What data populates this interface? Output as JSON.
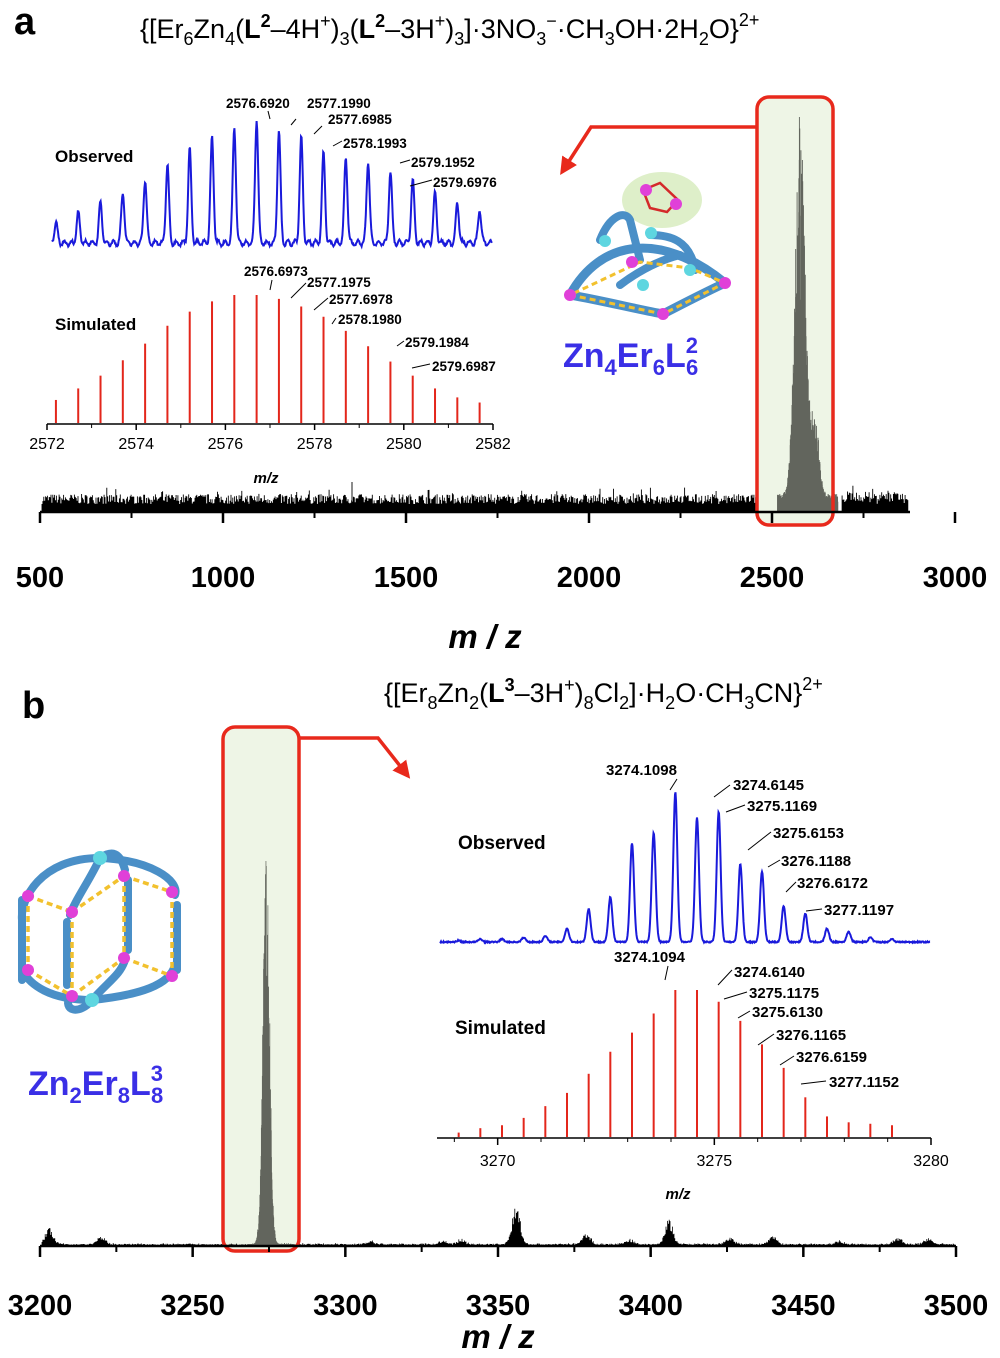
{
  "chart_data": [
    {
      "panel": "a",
      "type": "line",
      "title": "{[Er6Zn4(L2–4H+)3(L2–3H+)3]·3NO3−·CH3OH·2H2O}2+",
      "xlabel": "m / z",
      "xlim": [
        500,
        3000
      ],
      "xticks": [
        500,
        1000,
        1500,
        2000,
        2500,
        3000
      ],
      "highlight_range": [
        2510,
        2690
      ],
      "main_peak_envelope": {
        "center": 2577,
        "start": 2515,
        "end": 2680
      },
      "cluster_label": "Zn4Er6L26",
      "inset": {
        "xlabel": "m/z",
        "xlim": [
          2572,
          2582
        ],
        "xticks": [
          2572,
          2574,
          2576,
          2578,
          2580,
          2582
        ],
        "series": [
          {
            "name": "Observed",
            "color": "#1a1adb",
            "x": [
              2572.2,
              2572.7,
              2573.2,
              2573.7,
              2574.2,
              2574.7,
              2575.2,
              2575.7,
              2576.2,
              2576.7,
              2577.2,
              2577.7,
              2578.2,
              2578.7,
              2579.2,
              2579.7,
              2580.2,
              2580.7,
              2581.2,
              2581.7
            ],
            "values": [
              12,
              18,
              24,
              30,
              38,
              47,
              56,
              63,
              69,
              74,
              68,
              63,
              54,
              51,
              49,
              43,
              38,
              30,
              24,
              20
            ],
            "peak_labels": [
              "2576.6920",
              "2577.1990",
              "2577.6985",
              "2578.1993",
              "2579.1952",
              "2579.6976"
            ]
          },
          {
            "name": "Simulated",
            "color": "#e3261b",
            "x": [
              2572.2,
              2572.7,
              2573.2,
              2573.7,
              2574.2,
              2574.7,
              2575.2,
              2575.7,
              2576.2,
              2576.7,
              2577.2,
              2577.7,
              2578.2,
              2578.7,
              2579.2,
              2579.7,
              2580.2,
              2580.7,
              2581.2,
              2581.7
            ],
            "values": [
              18,
              27,
              37,
              49,
              62,
              76,
              87,
              95,
              100,
              100,
              97,
              91,
              83,
              72,
              60,
              48,
              37,
              27,
              20,
              16
            ],
            "peak_labels": [
              "2576.6973",
              "2577.1975",
              "2577.6978",
              "2578.1980",
              "2579.1984",
              "2579.6987"
            ]
          }
        ]
      }
    },
    {
      "panel": "b",
      "type": "line",
      "title": "{[Er8Zn2(L3–3H+)8Cl2]·H2O·CH3CN}2+",
      "xlabel": "m / z",
      "xlim": [
        3200,
        3500
      ],
      "xticks": [
        3200,
        3250,
        3300,
        3350,
        3400,
        3450,
        3500
      ],
      "highlight_range": [
        3260,
        3283
      ],
      "main_peak_envelope": {
        "center": 3274.1,
        "start": 3268,
        "end": 3282
      },
      "minor_peaks": [
        {
          "x": 3203,
          "value": 10
        },
        {
          "x": 3220,
          "value": 5
        },
        {
          "x": 3308,
          "value": 2
        },
        {
          "x": 3332,
          "value": 2
        },
        {
          "x": 3338,
          "value": 3
        },
        {
          "x": 3356,
          "value": 25
        },
        {
          "x": 3379,
          "value": 7
        },
        {
          "x": 3393,
          "value": 3
        },
        {
          "x": 3406,
          "value": 15
        },
        {
          "x": 3426,
          "value": 4
        },
        {
          "x": 3440,
          "value": 5
        },
        {
          "x": 3462,
          "value": 2
        },
        {
          "x": 3481,
          "value": 4
        },
        {
          "x": 3491,
          "value": 4
        }
      ],
      "cluster_label": "Zn2Er8L38",
      "inset": {
        "xlabel": "m/z",
        "xlim": [
          3268.6,
          3280
        ],
        "xticks": [
          3270,
          3275,
          3280
        ],
        "series": [
          {
            "name": "Observed",
            "color": "#1a1adb",
            "x": [
              3269.1,
              3269.6,
              3270.1,
              3270.6,
              3271.1,
              3271.6,
              3272.1,
              3272.6,
              3273.1,
              3273.6,
              3274.1,
              3274.6,
              3275.1,
              3275.6,
              3276.1,
              3276.6,
              3277.1,
              3277.6,
              3278.1,
              3278.6,
              3279.1
            ],
            "values": [
              1,
              2,
              2,
              3,
              4,
              9,
              22,
              30,
              66,
              73,
              100,
              83,
              87,
              52,
              47,
              24,
              19,
              9,
              7,
              3,
              2
            ],
            "peak_labels": [
              "3274.1098",
              "3274.6145",
              "3275.1169",
              "3275.6153",
              "3276.1188",
              "3276.6172",
              "3277.1197"
            ]
          },
          {
            "name": "Simulated",
            "color": "#e3261b",
            "x": [
              3269.1,
              3269.6,
              3270.1,
              3270.6,
              3271.1,
              3271.6,
              3272.1,
              3272.6,
              3273.1,
              3273.6,
              3274.1,
              3274.6,
              3275.1,
              3275.6,
              3276.1,
              3276.6,
              3277.1,
              3277.6,
              3278.1,
              3278.6,
              3279.1
            ],
            "values": [
              3,
              6,
              8,
              13,
              21,
              30,
              43,
              58,
              71,
              84,
              100,
              100,
              92,
              79,
              63,
              47,
              27,
              14,
              10,
              9,
              8
            ],
            "peak_labels": [
              "3274.1094",
              "3274.6140",
              "3275.1175",
              "3275.6130",
              "3276.1165",
              "3276.6159",
              "3277.1152"
            ]
          }
        ]
      }
    }
  ],
  "labels": {
    "a": {
      "letter": "a",
      "title": {
        "t1": "{[Er",
        "s1": "6",
        "t2": "Zn",
        "s2": "4",
        "t3": "(",
        "b1": "L",
        "p1": "2",
        "t4": "–4H",
        "p2": "+",
        "t5": ")",
        "s3": "3",
        "t6": "(",
        "b2": "L",
        "p3": "2",
        "t7": "–3H",
        "p4": "+",
        "t8": ")",
        "s4": "3",
        "t9": "]·3NO",
        "s5": "3",
        "p5": "−",
        "t10": "·CH",
        "s6": "3",
        "t11": "OH·2H",
        "s7": "2",
        "t12": "O}",
        "p6": "2+"
      },
      "observed": "Observed",
      "simulated": "Simulated",
      "inset_xlabel": "m/z",
      "axis_title": "m / z",
      "cluster": {
        "a": "Zn",
        "b": "4",
        "c": "Er",
        "d": "6",
        "e": "L",
        "f": "2",
        "g": "6"
      }
    },
    "b": {
      "letter": "b",
      "title": {
        "t1": "{[Er",
        "s1": "8",
        "t2": "Zn",
        "s2": "2",
        "t3": "(",
        "b1": "L",
        "p1": "3",
        "t4": "–3H",
        "p2": "+",
        "t5": ")",
        "s3": "8",
        "t6": "Cl",
        "s4": "2",
        "t7": "]·H",
        "s5": "2",
        "t8": "O·CH",
        "s6": "3",
        "t9": "CN}",
        "p3": "2+"
      },
      "observed": "Observed",
      "simulated": "Simulated",
      "inset_xlabel": "m/z",
      "axis_title": "m / z",
      "cluster": {
        "a": "Zn",
        "b": "2",
        "c": "Er",
        "d": "8",
        "e": "L",
        "f": "3",
        "g": "8"
      }
    }
  },
  "colors": {
    "observed": "#1a1adb",
    "simulated": "#e3261b",
    "highlight_fill": "#eef5e6",
    "highlight_border": "#e8291c",
    "spectrum": "#000000",
    "envelope": "#62655d",
    "metal_er": "#e040d8",
    "metal_zn": "#5ed6e0",
    "ligand": "#4a8fc7",
    "bond": "#f2c12e"
  }
}
